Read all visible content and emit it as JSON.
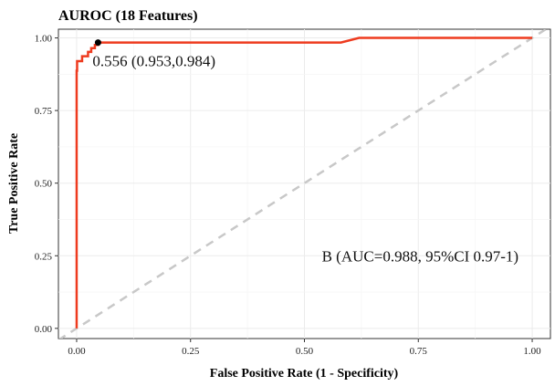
{
  "chart_data": {
    "type": "line",
    "title": "AUROC (18 Features)",
    "xlabel": "False Positive Rate (1 - Specificity)",
    "ylabel": "True Positive Rate",
    "xlim": [
      -0.04,
      1.04
    ],
    "ylim": [
      -0.035,
      1.03
    ],
    "x_ticks": [
      0,
      0.25,
      0.5,
      0.75,
      1
    ],
    "x_tick_labels": [
      "0.00",
      "0.25",
      "0.50",
      "0.75",
      "1.00"
    ],
    "y_ticks": [
      0,
      0.25,
      0.5,
      0.75,
      1
    ],
    "y_tick_labels": [
      "0.00",
      "0.25",
      "0.50",
      "0.75",
      "1.00"
    ],
    "grid": true,
    "series": [
      {
        "color": "#ee3b1f",
        "x": [
          0,
          0,
          0.001,
          0.001,
          0.012,
          0.012,
          0.025,
          0.025,
          0.032,
          0.032,
          0.04,
          0.04,
          0.047,
          0.047,
          0.58,
          0.62,
          1.0
        ],
        "y": [
          0,
          0.887,
          0.887,
          0.92,
          0.92,
          0.937,
          0.937,
          0.952,
          0.952,
          0.965,
          0.965,
          0.976,
          0.976,
          0.984,
          0.984,
          1.0,
          1.0
        ]
      }
    ],
    "reference_line": {
      "x": [
        -0.04,
        1.04
      ],
      "y": [
        -0.04,
        1.04
      ],
      "color": "#c8c8c8",
      "style": "dashed"
    },
    "threshold_point": {
      "x": 0.047,
      "y": 0.984,
      "label": "0.556 (0.953,0.984)"
    },
    "annotation": {
      "text": "B (AUC=0.988, 95%CI 0.97-1)",
      "x": 0.97,
      "y": 0.25
    }
  }
}
